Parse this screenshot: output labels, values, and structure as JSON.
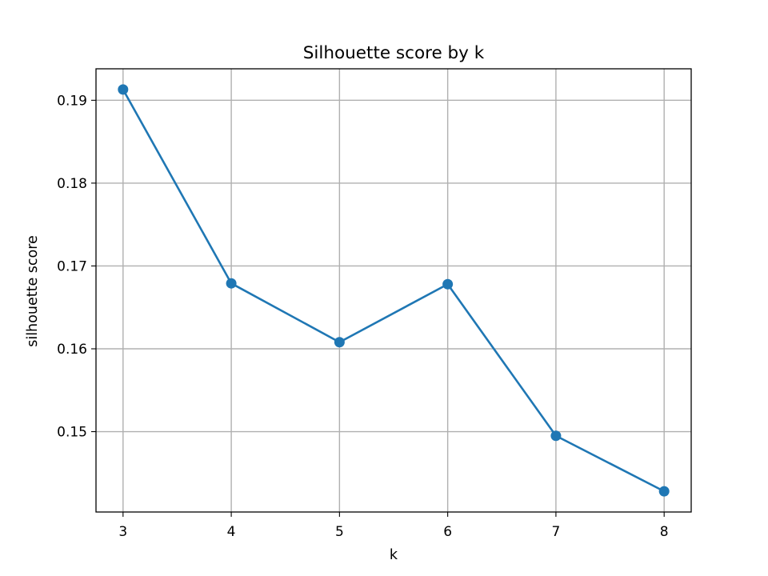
{
  "chart_data": {
    "type": "line",
    "title": "Silhouette score by k",
    "xlabel": "k",
    "ylabel": "silhouette score",
    "x": [
      3,
      4,
      5,
      6,
      7,
      8
    ],
    "series": [
      {
        "name": "silhouette score",
        "values": [
          0.1913,
          0.1679,
          0.1608,
          0.1678,
          0.1495,
          0.1428
        ],
        "color": "#1f77b4",
        "marker": "circle"
      }
    ],
    "xlim": [
      2.75,
      8.25
    ],
    "ylim": [
      0.1403,
      0.1938
    ],
    "xticks": [
      3,
      4,
      5,
      6,
      7,
      8
    ],
    "xtick_labels": [
      "3",
      "4",
      "5",
      "6",
      "7",
      "8"
    ],
    "yticks": [
      0.15,
      0.16,
      0.17,
      0.18,
      0.19
    ],
    "ytick_labels": [
      "0.15",
      "0.16",
      "0.17",
      "0.18",
      "0.19"
    ],
    "grid": true,
    "legend": "none"
  }
}
